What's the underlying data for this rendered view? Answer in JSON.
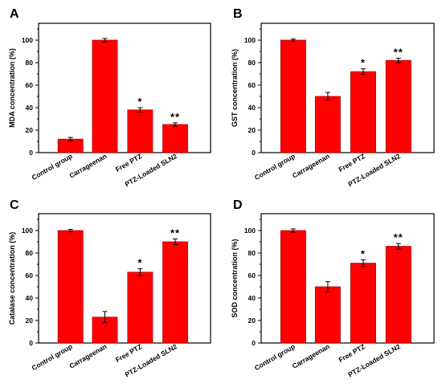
{
  "chart_data": [
    {
      "panel": "A",
      "type": "bar",
      "categories": [
        "Control group",
        "Carrageenan",
        "Free PTZ",
        "PTZ-Loaded SLN2"
      ],
      "values": [
        12,
        100,
        38,
        25
      ],
      "errors": [
        1.5,
        1.5,
        2,
        1.5
      ],
      "significance": [
        "",
        "",
        "*",
        "**"
      ],
      "ylabel": "MDA concentration (%)",
      "ylim": [
        0,
        115
      ],
      "yticks": [
        0,
        20,
        40,
        60,
        80,
        100
      ],
      "bar_color": "#ff0000"
    },
    {
      "panel": "B",
      "type": "bar",
      "categories": [
        "Control group",
        "Carrageenan",
        "Free PTZ",
        "PTZ-Loaded SLN2"
      ],
      "values": [
        100,
        50,
        72,
        82
      ],
      "errors": [
        1,
        3.5,
        2.5,
        2
      ],
      "significance": [
        "",
        "",
        "*",
        "**"
      ],
      "ylabel": "GST concentration (%)",
      "ylim": [
        0,
        115
      ],
      "yticks": [
        0,
        20,
        40,
        60,
        80,
        100
      ],
      "bar_color": "#ff0000"
    },
    {
      "panel": "C",
      "type": "bar",
      "categories": [
        "Control group",
        "Carrageenan",
        "Free PTZ",
        "PTZ-Loaded SLN2"
      ],
      "values": [
        100,
        23,
        63,
        90
      ],
      "errors": [
        1,
        5,
        3,
        2.5
      ],
      "significance": [
        "",
        "",
        "*",
        "**"
      ],
      "ylabel": "Catalase concentration (%)",
      "ylim": [
        0,
        115
      ],
      "yticks": [
        0,
        20,
        40,
        60,
        80,
        100
      ],
      "bar_color": "#ff0000"
    },
    {
      "panel": "D",
      "type": "bar",
      "categories": [
        "Control group",
        "Carrageenan",
        "Free PTZ",
        "PTZ-Loaded SLN2"
      ],
      "values": [
        100,
        50,
        71,
        86
      ],
      "errors": [
        1.5,
        4.5,
        3,
        2.5
      ],
      "significance": [
        "",
        "",
        "*",
        "**"
      ],
      "ylabel": "SOD concentration (%)",
      "ylim": [
        0,
        115
      ],
      "yticks": [
        0,
        20,
        40,
        60,
        80,
        100
      ],
      "bar_color": "#ff0000"
    }
  ]
}
